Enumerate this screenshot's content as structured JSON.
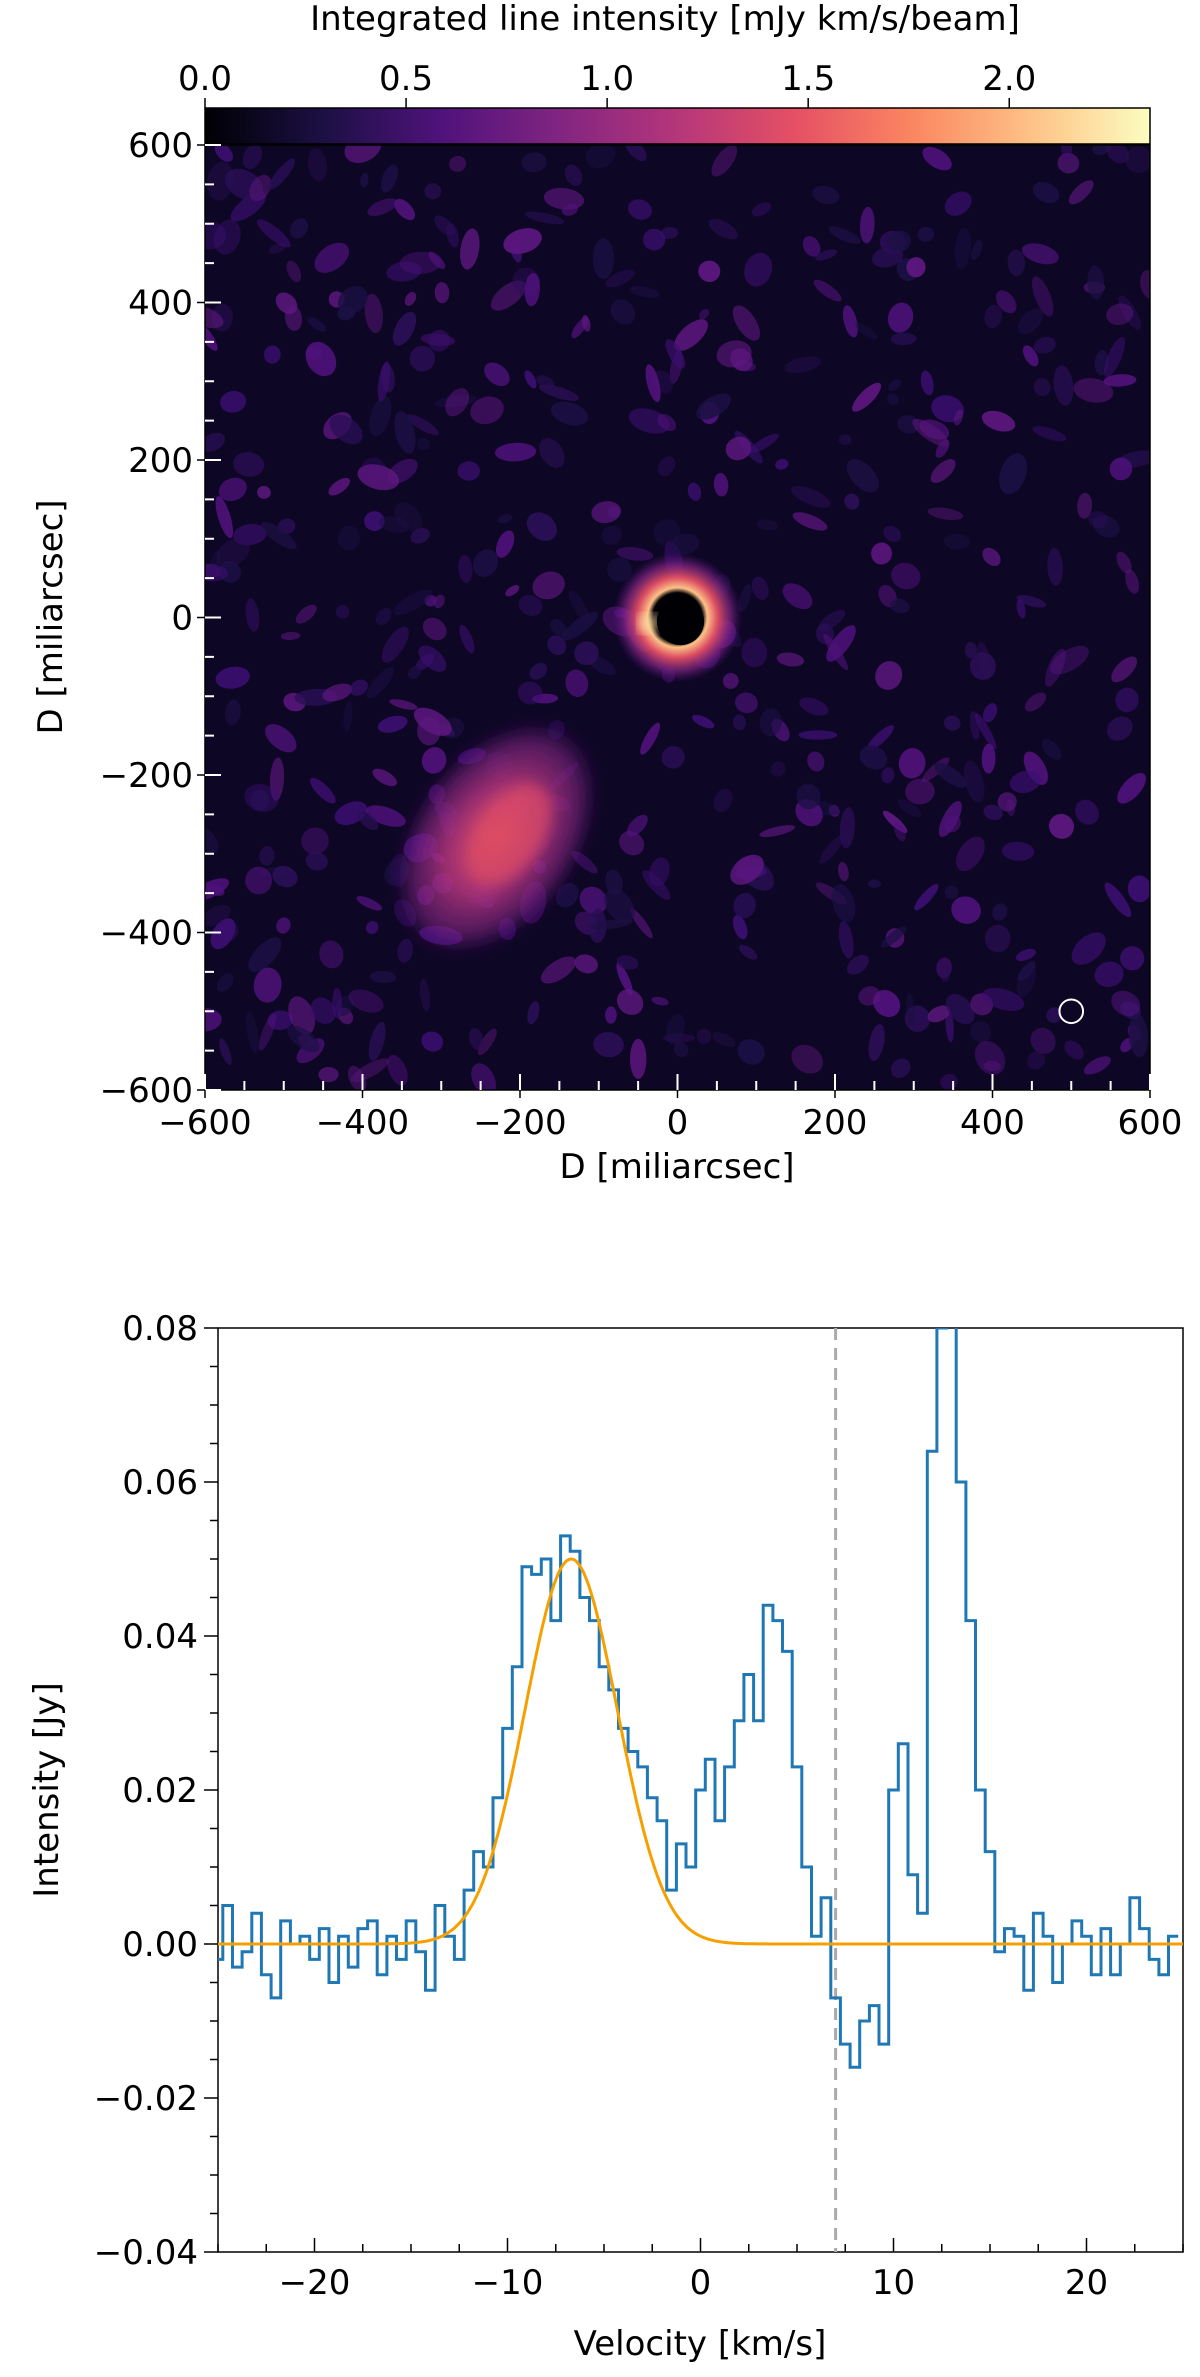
{
  "chart_data": [
    {
      "type": "heatmap",
      "colorbar": {
        "label": "Integrated line intensity [mJy km/s/beam]",
        "range": [
          0.0,
          2.35
        ],
        "ticks": [
          "0.0",
          "0.5",
          "1.0",
          "1.5",
          "2.0"
        ],
        "tick_values": [
          0.0,
          0.5,
          1.0,
          1.5,
          2.0
        ],
        "colormap": [
          "#000004",
          "#1c1044",
          "#4f127b",
          "#812581",
          "#b5367a",
          "#e55064",
          "#fb8761",
          "#fec287",
          "#fcfdbf"
        ],
        "placement": "top"
      },
      "xlabel": "D [miliarcsec]",
      "ylabel": "D [miliarcsec]",
      "xlim": [
        -600,
        600
      ],
      "ylim": [
        -600,
        600
      ],
      "x_ticks": [
        "−600",
        "−400",
        "−200",
        "0",
        "200",
        "400",
        "600"
      ],
      "x_tick_values": [
        -600,
        -400,
        -200,
        0,
        200,
        400,
        600
      ],
      "y_ticks": [
        "−600",
        "−400",
        "−200",
        "0",
        "200",
        "400",
        "600"
      ],
      "y_tick_values": [
        -600,
        -400,
        -200,
        0,
        200,
        400,
        600
      ],
      "features": [
        {
          "name": "central ring",
          "center": [
            0,
            0
          ],
          "inner_radius": 30,
          "outer_radius": 75,
          "peak_intensity": 2.2
        },
        {
          "name": "south-east clump",
          "center": [
            -230,
            -280
          ],
          "extent": [
            120,
            160
          ],
          "peak_intensity": 1.6
        },
        {
          "name": "beam",
          "center": [
            500,
            -500
          ],
          "radius": 15
        }
      ],
      "background": "#0d0624"
    },
    {
      "type": "line",
      "xlabel": "Velocity [km/s]",
      "ylabel": "Intensity [Jy]",
      "xlim": [
        -25,
        25
      ],
      "ylim": [
        -0.04,
        0.08
      ],
      "x_ticks": [
        "−20",
        "−10",
        "0",
        "10",
        "20"
      ],
      "x_tick_values": [
        -20,
        -10,
        0,
        10,
        20
      ],
      "y_ticks": [
        "−0.04",
        "−0.02",
        "0.00",
        "0.02",
        "0.04",
        "0.06",
        "0.08"
      ],
      "y_tick_values": [
        -0.04,
        -0.02,
        0.0,
        0.02,
        0.04,
        0.06,
        0.08
      ],
      "grid": false,
      "series": [
        {
          "style": "step",
          "color": "#1f77b4",
          "bin_width": 0.5,
          "x": [
            -25,
            -24.5,
            -24,
            -23.5,
            -23,
            -22.5,
            -22,
            -21.5,
            -21,
            -20.5,
            -20,
            -19.5,
            -19,
            -18.5,
            -18,
            -17.5,
            -17,
            -16.5,
            -16,
            -15.5,
            -15,
            -14.5,
            -14,
            -13.5,
            -13,
            -12.5,
            -12,
            -11.5,
            -11,
            -10.5,
            -10,
            -9.5,
            -9,
            -8.5,
            -8,
            -7.5,
            -7,
            -6.5,
            -6,
            -5.5,
            -5,
            -4.5,
            -4,
            -3.5,
            -3,
            -2.5,
            -2,
            -1.5,
            -1,
            -0.5,
            0,
            0.5,
            1,
            1.5,
            2,
            2.5,
            3,
            3.5,
            4,
            4.5,
            5,
            5.5,
            6,
            6.5,
            7,
            7.5,
            8,
            8.5,
            9,
            9.5,
            10,
            10.5,
            11,
            11.5,
            12,
            12.5,
            13,
            13.5,
            14,
            14.5,
            15,
            15.5,
            16,
            16.5,
            17,
            17.5,
            18,
            18.5,
            19,
            19.5,
            20,
            20.5,
            21,
            21.5,
            22,
            22.5,
            23,
            23.5,
            24,
            24.5
          ],
          "values": [
            -0.002,
            0.005,
            -0.003,
            -0.001,
            0.004,
            -0.004,
            -0.007,
            0.003,
            0.0,
            0.001,
            -0.002,
            0.002,
            -0.005,
            0.001,
            -0.003,
            0.002,
            0.003,
            -0.004,
            0.001,
            -0.002,
            0.003,
            -0.001,
            -0.006,
            0.005,
            0.001,
            -0.002,
            0.007,
            0.012,
            0.01,
            0.019,
            0.028,
            0.036,
            0.049,
            0.048,
            0.05,
            0.042,
            0.053,
            0.051,
            0.045,
            0.042,
            0.036,
            0.033,
            0.028,
            0.025,
            0.023,
            0.019,
            0.016,
            0.007,
            0.013,
            0.01,
            0.02,
            0.024,
            0.016,
            0.023,
            0.029,
            0.035,
            0.029,
            0.044,
            0.042,
            0.038,
            0.023,
            0.01,
            0.001,
            0.006,
            -0.007,
            -0.013,
            -0.016,
            -0.01,
            -0.008,
            -0.013,
            0.02,
            0.026,
            0.009,
            0.004,
            0.064,
            0.08,
            0.085,
            0.06,
            0.042,
            0.02,
            0.012,
            -0.001,
            0.002,
            0.001,
            -0.006,
            0.004,
            0.001,
            -0.005,
            0.0,
            0.003,
            0.001,
            -0.004,
            0.002,
            -0.004,
            0.0,
            0.006,
            0.002,
            -0.002,
            -0.004,
            0.001
          ]
        },
        {
          "style": "line",
          "color": "#f5a000",
          "model": "gaussian",
          "amplitude": 0.05,
          "center": -6.7,
          "sigma": 2.4
        }
      ],
      "vline": {
        "x": 7,
        "color": "#aaaaaa",
        "style": "dashed"
      }
    }
  ]
}
